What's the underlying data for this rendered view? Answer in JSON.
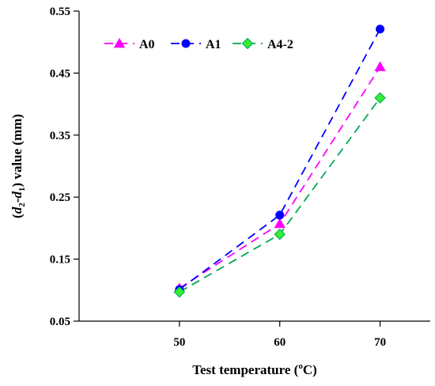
{
  "chart_data": {
    "type": "line",
    "x": [
      50,
      60,
      70
    ],
    "xlim": [
      40,
      75
    ],
    "ylim": [
      0.05,
      0.55
    ],
    "xticks": [
      50,
      60,
      70
    ],
    "yticks": [
      0.05,
      0.15,
      0.25,
      0.35,
      0.45,
      0.55
    ],
    "ytick_labels": [
      "0.05",
      "0.15",
      "0.25",
      "0.35",
      "0.45",
      "0.55"
    ],
    "xlabel": {
      "main": "Test temperature (",
      "sup": "o",
      "tail": "C)"
    },
    "ylabel": {
      "open": "(",
      "d2": "d",
      "sub2": "2",
      "dash": "-",
      "d1": "d",
      "sub1": "1",
      "close": ") value (mm)"
    },
    "grid": false,
    "legend_position": "top-left",
    "series": [
      {
        "name": "A0",
        "values": [
          0.103,
          0.207,
          0.46
        ],
        "color": "#ff00ff",
        "marker": "triangle"
      },
      {
        "name": "A1",
        "values": [
          0.101,
          0.221,
          0.521
        ],
        "color": "#0000ff",
        "marker": "circle"
      },
      {
        "name": "A4-2",
        "values": [
          0.097,
          0.19,
          0.41
        ],
        "color": "#00a651",
        "marker_fill": "#33ee33",
        "marker": "diamond"
      }
    ]
  }
}
